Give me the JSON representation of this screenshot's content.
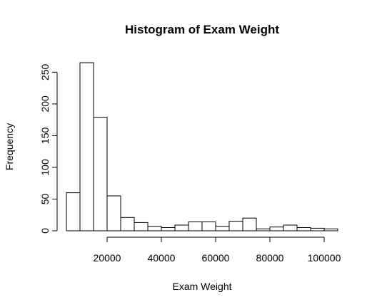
{
  "chart_data": {
    "type": "bar",
    "title": "Histogram of Exam Weight",
    "xlabel": "Exam Weight",
    "ylabel": "Frequency",
    "bin_width": 5000,
    "bins": [
      {
        "start": 5000,
        "end": 10000,
        "count": 60
      },
      {
        "start": 10000,
        "end": 15000,
        "count": 265
      },
      {
        "start": 15000,
        "end": 20000,
        "count": 179
      },
      {
        "start": 20000,
        "end": 25000,
        "count": 55
      },
      {
        "start": 25000,
        "end": 30000,
        "count": 21
      },
      {
        "start": 30000,
        "end": 35000,
        "count": 13
      },
      {
        "start": 35000,
        "end": 40000,
        "count": 7
      },
      {
        "start": 40000,
        "end": 45000,
        "count": 5
      },
      {
        "start": 45000,
        "end": 50000,
        "count": 9
      },
      {
        "start": 50000,
        "end": 55000,
        "count": 14
      },
      {
        "start": 55000,
        "end": 60000,
        "count": 14
      },
      {
        "start": 60000,
        "end": 65000,
        "count": 7
      },
      {
        "start": 65000,
        "end": 70000,
        "count": 15
      },
      {
        "start": 70000,
        "end": 75000,
        "count": 20
      },
      {
        "start": 75000,
        "end": 80000,
        "count": 3
      },
      {
        "start": 80000,
        "end": 85000,
        "count": 6
      },
      {
        "start": 85000,
        "end": 90000,
        "count": 9
      },
      {
        "start": 90000,
        "end": 95000,
        "count": 5
      },
      {
        "start": 95000,
        "end": 100000,
        "count": 4
      },
      {
        "start": 100000,
        "end": 105000,
        "count": 3
      }
    ],
    "x_ticks": [
      {
        "value": 20000,
        "label": "20000"
      },
      {
        "value": 40000,
        "label": "40000"
      },
      {
        "value": 60000,
        "label": "60000"
      },
      {
        "value": 80000,
        "label": "80000"
      },
      {
        "value": 100000,
        "label": "100000"
      }
    ],
    "y_ticks": [
      {
        "value": 0,
        "label": "0"
      },
      {
        "value": 50,
        "label": "50"
      },
      {
        "value": 100,
        "label": "100"
      },
      {
        "value": 150,
        "label": "150"
      },
      {
        "value": 200,
        "label": "200"
      },
      {
        "value": 250,
        "label": "250"
      }
    ],
    "xlim": [
      5000,
      105000
    ],
    "ylim": [
      0,
      265
    ],
    "grid": false,
    "colors": {
      "bar_fill": "#ffffff",
      "bar_stroke": "#000000"
    }
  }
}
